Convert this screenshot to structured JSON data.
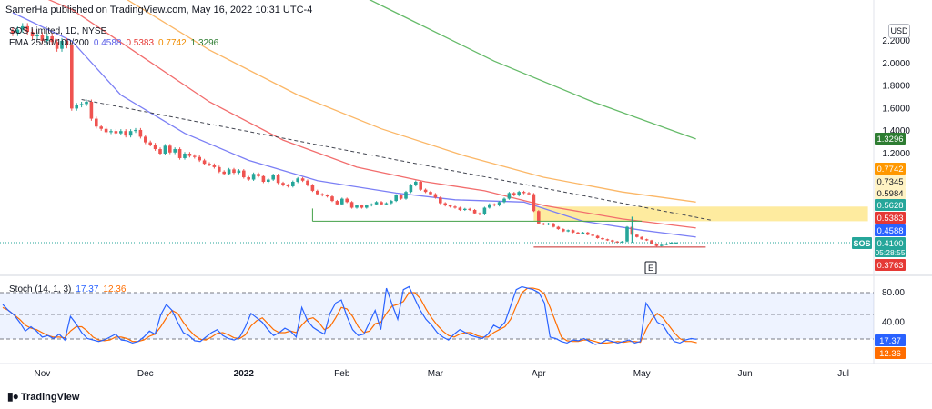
{
  "header": {
    "published": "SamerHa published on TradingView.com, May 16, 2022 10:31 UTC-4"
  },
  "legend_main": {
    "symbol": "SOS Limited, 1D, NYSE",
    "ema_label": "EMA 25/50/100/200",
    "ema25": "0.4588",
    "ema50": "0.5383",
    "ema100": "0.7742",
    "ema200": "1.3296"
  },
  "legend_stoch": {
    "label": "Stoch (14, 1, 3)",
    "k": "17.37",
    "d": "12.36"
  },
  "currency": "USD",
  "marker": "E",
  "footer": {
    "brand": "TradingView"
  },
  "colors": {
    "up": "#26a69a",
    "down": "#ef5350",
    "ema25": "#7b7ff5",
    "ema50": "#f26d6d",
    "ema100": "#fbb767",
    "ema200": "#66bb6a",
    "stoch_k": "#2962ff",
    "stoch_d": "#ff6d00",
    "zone": "#fde47f"
  },
  "price_labels": [
    {
      "text": "0.7742",
      "bg": "#ff9800",
      "fg": "#ffffff",
      "value": 0.7742
    },
    {
      "text": "0.7345",
      "bg": "#fff3c4",
      "fg": "#131722",
      "value": 0.7345
    },
    {
      "text": "0.5984",
      "bg": "#fff3c4",
      "fg": "#131722",
      "value": 0.5984
    },
    {
      "text": "0.5628",
      "bg": "#26a69a",
      "fg": "#ffffff",
      "value": 0.5628
    },
    {
      "text": "0.5383",
      "bg": "#e53935",
      "fg": "#ffffff",
      "value": 0.5383
    },
    {
      "text": "0.4588",
      "bg": "#2962ff",
      "fg": "#ffffff",
      "value": 0.4588
    },
    {
      "text": "0.4100",
      "bg": "#26a69a",
      "fg": "#ffffff",
      "value": 0.41,
      "sub": "05:28:55"
    },
    {
      "text": "0.3763",
      "bg": "#e53935",
      "fg": "#ffffff",
      "value": 0.3763
    },
    {
      "text": "1.3296",
      "bg": "#2e7d32",
      "fg": "#ffffff",
      "value": 1.3296
    }
  ],
  "sym_tag": "SOS",
  "stoch_labels": [
    {
      "text": "17.37",
      "bg": "#2962ff",
      "value": 17.37
    },
    {
      "text": "12.36",
      "bg": "#ff6d00",
      "value": 12.36
    }
  ],
  "chart_data": {
    "type": "candlestick",
    "price_axis": {
      "ticks": [
        {
          "label": "2.2000",
          "value": 2.2
        },
        {
          "label": "2.0000",
          "value": 2.0
        },
        {
          "label": "1.8000",
          "value": 1.8
        },
        {
          "label": "1.6000",
          "value": 1.6
        },
        {
          "label": "1.4000",
          "value": 1.4
        },
        {
          "label": "1.2000",
          "value": 1.2
        }
      ]
    },
    "stoch_axis": {
      "ticks": [
        {
          "label": "80.00",
          "value": 80
        },
        {
          "label": "40.00",
          "value": 40
        }
      ]
    },
    "time_axis": [
      {
        "label": "Nov",
        "bar": 6,
        "bold": false
      },
      {
        "label": "Dec",
        "bar": 27,
        "bold": false
      },
      {
        "label": "2022",
        "bar": 47,
        "bold": true
      },
      {
        "label": "Feb",
        "bar": 67,
        "bold": false
      },
      {
        "label": "Mar",
        "bar": 86,
        "bold": false
      },
      {
        "label": "Apr",
        "bar": 107,
        "bold": false
      },
      {
        "label": "May",
        "bar": 128,
        "bold": false
      },
      {
        "label": "Jun",
        "bar": 149,
        "bold": false
      },
      {
        "label": "Jul",
        "bar": 169,
        "bold": false
      }
    ],
    "closes": [
      2.27,
      2.3,
      2.33,
      2.28,
      2.24,
      2.25,
      2.2,
      2.24,
      2.19,
      2.13,
      2.2,
      2.16,
      1.6,
      1.63,
      1.64,
      1.66,
      1.51,
      1.44,
      1.42,
      1.39,
      1.4,
      1.38,
      1.4,
      1.36,
      1.4,
      1.41,
      1.35,
      1.3,
      1.28,
      1.24,
      1.2,
      1.27,
      1.21,
      1.24,
      1.16,
      1.2,
      1.18,
      1.17,
      1.14,
      1.11,
      1.1,
      1.08,
      1.04,
      1.02,
      1.06,
      1.03,
      1.05,
      0.99,
      0.97,
      1.02,
      1.0,
      0.95,
      0.97,
      1.01,
      0.94,
      0.92,
      0.91,
      0.95,
      0.98,
      0.96,
      0.92,
      0.87,
      0.84,
      0.83,
      0.82,
      0.78,
      0.75,
      0.8,
      0.77,
      0.72,
      0.74,
      0.72,
      0.74,
      0.75,
      0.77,
      0.75,
      0.76,
      0.78,
      0.83,
      0.8,
      0.86,
      0.92,
      0.95,
      0.88,
      0.86,
      0.84,
      0.81,
      0.76,
      0.74,
      0.73,
      0.72,
      0.7,
      0.71,
      0.7,
      0.67,
      0.66,
      0.72,
      0.75,
      0.74,
      0.77,
      0.8,
      0.85,
      0.83,
      0.86,
      0.85,
      0.84,
      0.69,
      0.58,
      0.57,
      0.58,
      0.55,
      0.53,
      0.51,
      0.52,
      0.5,
      0.49,
      0.5,
      0.48,
      0.47,
      0.45,
      0.44,
      0.43,
      0.42,
      0.41,
      0.42,
      0.55,
      0.48,
      0.46,
      0.44,
      0.43,
      0.4,
      0.38,
      0.39,
      0.4,
      0.41,
      0.41
    ],
    "ema": {
      "ema25": [
        {
          "bar": 0,
          "v": 2.45
        },
        {
          "bar": 12,
          "v": 2.2
        },
        {
          "bar": 22,
          "v": 1.72
        },
        {
          "bar": 35,
          "v": 1.38
        },
        {
          "bar": 48,
          "v": 1.14
        },
        {
          "bar": 62,
          "v": 0.96
        },
        {
          "bar": 78,
          "v": 0.85
        },
        {
          "bar": 90,
          "v": 0.79
        },
        {
          "bar": 104,
          "v": 0.77
        },
        {
          "bar": 116,
          "v": 0.6
        },
        {
          "bar": 128,
          "v": 0.52
        },
        {
          "bar": 139,
          "v": 0.46
        }
      ],
      "ema50": [
        {
          "bar": 0,
          "v": 2.7
        },
        {
          "bar": 12,
          "v": 2.48
        },
        {
          "bar": 25,
          "v": 2.1
        },
        {
          "bar": 40,
          "v": 1.66
        },
        {
          "bar": 55,
          "v": 1.32
        },
        {
          "bar": 70,
          "v": 1.08
        },
        {
          "bar": 84,
          "v": 0.95
        },
        {
          "bar": 96,
          "v": 0.87
        },
        {
          "bar": 108,
          "v": 0.74
        },
        {
          "bar": 124,
          "v": 0.62
        },
        {
          "bar": 139,
          "v": 0.54
        }
      ],
      "ema100": [
        {
          "bar": 8,
          "v": 2.95
        },
        {
          "bar": 22,
          "v": 2.6
        },
        {
          "bar": 40,
          "v": 2.12
        },
        {
          "bar": 58,
          "v": 1.72
        },
        {
          "bar": 75,
          "v": 1.42
        },
        {
          "bar": 92,
          "v": 1.18
        },
        {
          "bar": 108,
          "v": 0.99
        },
        {
          "bar": 124,
          "v": 0.86
        },
        {
          "bar": 139,
          "v": 0.77
        }
      ],
      "ema200": [
        {
          "bar": 40,
          "v": 3.3
        },
        {
          "bar": 58,
          "v": 2.88
        },
        {
          "bar": 78,
          "v": 2.45
        },
        {
          "bar": 98,
          "v": 2.02
        },
        {
          "bar": 118,
          "v": 1.66
        },
        {
          "bar": 139,
          "v": 1.33
        }
      ]
    },
    "trendline": [
      {
        "bar": 14,
        "v": 1.68
      },
      {
        "bar": 142,
        "v": 0.61
      }
    ],
    "support_line": {
      "from_bar": 61,
      "to_bar": 128,
      "v": 0.6
    },
    "resistance_line": {
      "from_bar": 106,
      "to_bar": 141,
      "v": 0.37
    },
    "zone": {
      "from_bar": 106,
      "to_bar": 174,
      "v_low": 0.6,
      "v_high": 0.73
    },
    "current_price": 0.41,
    "stoch_k": [
      64,
      56,
      50,
      40,
      28,
      34,
      28,
      20,
      22,
      18,
      24,
      16,
      48,
      38,
      26,
      18,
      16,
      14,
      16,
      20,
      24,
      16,
      15,
      12,
      14,
      20,
      28,
      24,
      50,
      64,
      56,
      40,
      26,
      22,
      15,
      14,
      20,
      26,
      30,
      22,
      18,
      16,
      20,
      34,
      52,
      46,
      40,
      30,
      22,
      26,
      32,
      28,
      20,
      60,
      42,
      33,
      28,
      24,
      52,
      66,
      70,
      48,
      30,
      22,
      24,
      40,
      56,
      30,
      86,
      64,
      44,
      84,
      88,
      72,
      56,
      44,
      36,
      26,
      20,
      16,
      24,
      30,
      26,
      22,
      20,
      18,
      24,
      36,
      32,
      40,
      62,
      84,
      88,
      86,
      84,
      80,
      66,
      20,
      18,
      14,
      12,
      16,
      15,
      18,
      14,
      10,
      12,
      16,
      14,
      12,
      14,
      16,
      12,
      14,
      66,
      54,
      40,
      36,
      24,
      14,
      12,
      16,
      18,
      17
    ],
    "stoch_d": [
      60,
      56,
      50,
      44,
      36,
      32,
      30,
      26,
      22,
      20,
      20,
      19,
      28,
      34,
      34,
      28,
      20,
      16,
      15,
      16,
      20,
      20,
      18,
      14,
      14,
      16,
      21,
      24,
      34,
      46,
      56,
      52,
      40,
      30,
      22,
      17,
      16,
      20,
      25,
      26,
      23,
      19,
      18,
      23,
      35,
      42,
      46,
      38,
      30,
      26,
      26,
      28,
      26,
      36,
      44,
      46,
      40,
      30,
      34,
      46,
      60,
      58,
      48,
      34,
      26,
      28,
      38,
      40,
      52,
      62,
      64,
      68,
      80,
      80,
      72,
      58,
      46,
      36,
      28,
      22,
      20,
      24,
      26,
      26,
      22,
      20,
      20,
      26,
      30,
      34,
      44,
      62,
      80,
      86,
      86,
      84,
      78,
      60,
      40,
      20,
      15,
      14,
      14,
      16,
      16,
      14,
      12,
      12,
      13,
      14,
      13,
      14,
      14,
      13,
      30,
      44,
      52,
      46,
      36,
      26,
      18,
      14,
      14,
      12.36
    ]
  }
}
